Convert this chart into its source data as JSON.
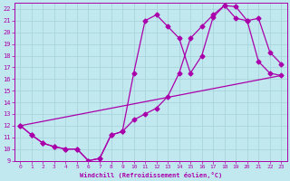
{
  "xlabel": "Windchill (Refroidissement éolien,°C)",
  "xlim": [
    -0.5,
    23.5
  ],
  "ylim": [
    9,
    22.5
  ],
  "xticks": [
    0,
    1,
    2,
    3,
    4,
    5,
    6,
    7,
    8,
    9,
    10,
    11,
    12,
    13,
    14,
    15,
    16,
    17,
    18,
    19,
    20,
    21,
    22,
    23
  ],
  "yticks": [
    9,
    10,
    11,
    12,
    13,
    14,
    15,
    16,
    17,
    18,
    19,
    20,
    21,
    22
  ],
  "background_color": "#c2e8ef",
  "grid_color": "#aad4dc",
  "line_color": "#aa00aa",
  "line1_x": [
    0,
    1,
    2,
    3,
    4,
    5,
    6,
    7,
    8,
    9,
    10,
    11,
    12,
    13,
    14,
    15,
    16,
    17,
    18,
    19,
    20,
    21,
    22,
    23
  ],
  "line1_y": [
    12,
    11.2,
    10.5,
    10.2,
    10.0,
    10.0,
    9.0,
    9.2,
    11.2,
    11.5,
    12.5,
    13.0,
    13.5,
    14.5,
    16.5,
    19.5,
    20.5,
    21.5,
    22.3,
    22.2,
    21.0,
    21.2,
    18.3,
    17.3
  ],
  "line2_x": [
    0,
    1,
    2,
    3,
    4,
    5,
    6,
    7,
    8,
    9,
    10,
    11,
    12,
    13,
    14,
    15,
    16,
    17,
    18,
    19,
    20,
    21,
    22,
    23
  ],
  "line2_y": [
    12,
    11.2,
    10.5,
    10.2,
    10.0,
    10.0,
    9.0,
    9.2,
    11.2,
    11.5,
    16.5,
    21.0,
    21.5,
    20.5,
    19.5,
    16.5,
    18.0,
    21.3,
    22.3,
    21.2,
    21.0,
    17.5,
    16.5,
    16.3
  ],
  "line3_x": [
    0,
    23
  ],
  "line3_y": [
    12.0,
    16.3
  ],
  "marker": "D",
  "markersize": 2.5,
  "linewidth": 0.9
}
